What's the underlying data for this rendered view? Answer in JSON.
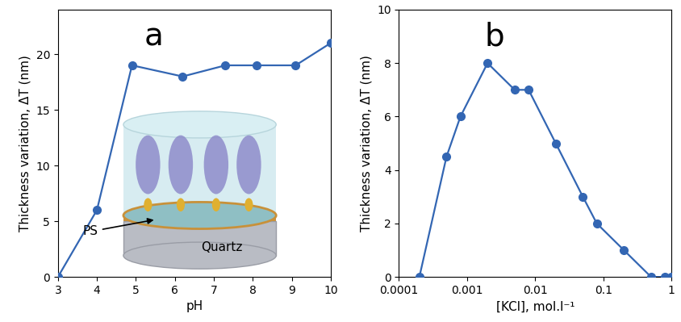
{
  "chart_data": [
    {
      "type": "line",
      "x_label": "pH",
      "y_label": "Thickness variation, ΔT (nm)",
      "annotations": [
        "a",
        "PS",
        "Quartz"
      ],
      "x": [
        3,
        4,
        4.9,
        6.2,
        7.3,
        8.1,
        9.1,
        10
      ],
      "values": [
        0,
        6,
        19,
        18,
        19,
        19,
        19,
        21
      ],
      "color": "#3366b3",
      "marker": "o",
      "line_style": "solid",
      "grid": false,
      "xlim": [
        3,
        10
      ],
      "xticks": [
        3,
        4,
        5,
        6,
        7,
        8,
        9,
        10
      ],
      "ylim": [
        0,
        24
      ],
      "yticks": [
        0,
        5,
        10,
        15,
        20
      ]
    },
    {
      "type": "line",
      "x_label": "[KCl], mol.l⁻¹",
      "y_label": "Thickness variation, ΔT (nm)",
      "annotations": [
        "b"
      ],
      "x": [
        0.0002,
        0.0005,
        0.0008,
        0.002,
        0.005,
        0.008,
        0.02,
        0.05,
        0.08,
        0.2,
        0.5,
        0.8,
        1
      ],
      "values": [
        0,
        4.5,
        6,
        8,
        7,
        7,
        5,
        3,
        2,
        1,
        0,
        0,
        0
      ],
      "color": "#3366b3",
      "marker": "o",
      "line_style": "solid",
      "grid": false,
      "log": "x",
      "xlim": [
        0.0001,
        1
      ],
      "xticks": [
        0.0001,
        0.001,
        0.01,
        0.1,
        1
      ],
      "ylim": [
        0,
        10
      ],
      "yticks": [
        0,
        2,
        4,
        6,
        8,
        10
      ]
    }
  ]
}
